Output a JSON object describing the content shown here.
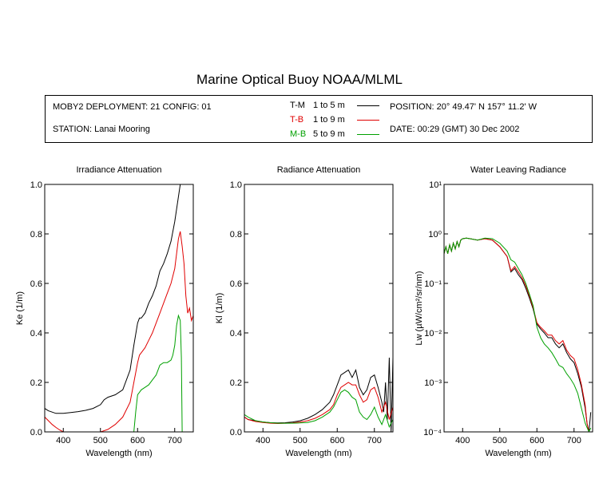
{
  "title": "Marine Optical Buoy NOAA/MLML",
  "info": {
    "deployment": "MOBY2 DEPLOYMENT: 21 CONFIG: 01",
    "station": "STATION: Lanai Mooring",
    "position": "POSITION: 20° 49.47' N   157° 11.2' W",
    "date": "DATE: 00:29 (GMT) 30 Dec 2002",
    "legend": [
      {
        "code": "T-M",
        "range": "1 to 5  m",
        "color": "#000000"
      },
      {
        "code": "T-B",
        "range": "1 to 9  m",
        "color": "#e00000"
      },
      {
        "code": "M-B",
        "range": "5 to 9  m",
        "color": "#00a000"
      }
    ]
  },
  "chart_data": [
    {
      "type": "line",
      "title": "Irradiance Attenuation",
      "xlabel": "Wavelength (nm)",
      "ylabel": "Ke  (1/m)",
      "xlim": [
        350,
        750
      ],
      "ylim": [
        0,
        1
      ],
      "xticks": [
        400,
        500,
        600,
        700
      ],
      "yticks": [
        "0.0",
        "0.2",
        "0.4",
        "0.6",
        "0.8",
        "1.0"
      ],
      "series": [
        {
          "name": "T-M",
          "x": [
            350,
            360,
            380,
            400,
            420,
            440,
            460,
            480,
            500,
            510,
            520,
            540,
            560,
            580,
            590,
            600,
            605,
            610,
            620,
            630,
            640,
            650,
            660,
            670,
            680,
            690,
            700,
            710,
            715
          ],
          "y": [
            0.095,
            0.085,
            0.075,
            0.075,
            0.078,
            0.082,
            0.087,
            0.095,
            0.11,
            0.13,
            0.14,
            0.15,
            0.17,
            0.25,
            0.35,
            0.44,
            0.46,
            0.46,
            0.48,
            0.52,
            0.55,
            0.59,
            0.65,
            0.68,
            0.72,
            0.77,
            0.85,
            0.95,
            1.0
          ]
        },
        {
          "name": "T-B",
          "x": [
            350,
            360,
            370,
            380,
            390,
            400,
            410,
            420,
            440,
            460,
            480,
            500,
            520,
            540,
            560,
            580,
            590,
            600,
            605,
            610,
            620,
            630,
            640,
            650,
            660,
            670,
            680,
            690,
            700,
            705,
            710,
            715,
            720,
            725,
            730,
            735,
            740,
            745,
            750
          ],
          "y": [
            0.06,
            0.045,
            0.03,
            0.018,
            0.008,
            0.0,
            0.0,
            0.0,
            0.0,
            0.0,
            0.0,
            0.0,
            0.01,
            0.03,
            0.06,
            0.12,
            0.2,
            0.28,
            0.31,
            0.32,
            0.34,
            0.37,
            0.4,
            0.44,
            0.48,
            0.52,
            0.56,
            0.6,
            0.66,
            0.72,
            0.78,
            0.81,
            0.75,
            0.68,
            0.55,
            0.48,
            0.5,
            0.45,
            0.47
          ]
        },
        {
          "name": "M-B",
          "x": [
            590,
            595,
            600,
            605,
            610,
            620,
            630,
            640,
            650,
            660,
            670,
            680,
            690,
            695,
            700,
            705,
            710,
            715,
            718,
            720
          ],
          "y": [
            0.0,
            0.08,
            0.15,
            0.16,
            0.17,
            0.18,
            0.19,
            0.21,
            0.23,
            0.27,
            0.28,
            0.28,
            0.29,
            0.31,
            0.35,
            0.43,
            0.47,
            0.45,
            0.3,
            0.0
          ]
        }
      ]
    },
    {
      "type": "line",
      "title": "Radiance Attenuation",
      "xlabel": "Wavelength (nm)",
      "ylabel": "Kl  (1/m)",
      "xlim": [
        350,
        750
      ],
      "ylim": [
        0,
        1
      ],
      "xticks": [
        400,
        500,
        600,
        700
      ],
      "yticks": [
        "0.0",
        "0.2",
        "0.4",
        "0.6",
        "0.8",
        "1.0"
      ],
      "series": [
        {
          "name": "T-M",
          "x": [
            350,
            360,
            380,
            400,
            420,
            440,
            460,
            480,
            500,
            520,
            540,
            560,
            580,
            590,
            600,
            605,
            610,
            620,
            630,
            640,
            650,
            660,
            670,
            680,
            690,
            700,
            710,
            720,
            725,
            730,
            735,
            740,
            745,
            750
          ],
          "y": [
            0.06,
            0.05,
            0.045,
            0.04,
            0.037,
            0.036,
            0.037,
            0.04,
            0.045,
            0.055,
            0.07,
            0.09,
            0.12,
            0.15,
            0.19,
            0.21,
            0.23,
            0.24,
            0.25,
            0.22,
            0.25,
            0.18,
            0.15,
            0.17,
            0.22,
            0.23,
            0.18,
            0.12,
            0.08,
            0.2,
            0.05,
            0.3,
            0.0,
            0.3
          ]
        },
        {
          "name": "T-B",
          "x": [
            350,
            360,
            380,
            400,
            420,
            440,
            460,
            480,
            500,
            520,
            540,
            560,
            580,
            590,
            600,
            610,
            620,
            630,
            640,
            650,
            660,
            670,
            680,
            690,
            700,
            710,
            720,
            730,
            740,
            750
          ],
          "y": [
            0.06,
            0.05,
            0.042,
            0.038,
            0.035,
            0.034,
            0.035,
            0.036,
            0.04,
            0.045,
            0.055,
            0.07,
            0.09,
            0.11,
            0.15,
            0.18,
            0.19,
            0.2,
            0.19,
            0.19,
            0.15,
            0.12,
            0.13,
            0.17,
            0.18,
            0.14,
            0.08,
            0.12,
            0.05,
            0.1
          ]
        },
        {
          "name": "M-B",
          "x": [
            350,
            360,
            380,
            400,
            420,
            440,
            460,
            480,
            500,
            520,
            540,
            560,
            580,
            590,
            600,
            610,
            620,
            630,
            640,
            650,
            660,
            670,
            680,
            690,
            700,
            710,
            720,
            730,
            740,
            750
          ],
          "y": [
            0.07,
            0.06,
            0.045,
            0.04,
            0.037,
            0.035,
            0.035,
            0.035,
            0.036,
            0.038,
            0.045,
            0.06,
            0.08,
            0.1,
            0.13,
            0.16,
            0.17,
            0.16,
            0.14,
            0.13,
            0.08,
            0.06,
            0.05,
            0.07,
            0.1,
            0.06,
            0.03,
            0.07,
            0.02,
            0.05
          ]
        }
      ]
    },
    {
      "type": "line",
      "title": "Water Leaving Radiance",
      "xlabel": "Wavelength (nm)",
      "ylabel": "Lw  (µW/cm²/sr/nm)",
      "xlim": [
        350,
        750
      ],
      "ylim": [
        0.0001,
        10
      ],
      "yscale": "log",
      "xticks": [
        400,
        500,
        600,
        700
      ],
      "yticks": [
        "10⁻⁴",
        "10⁻³",
        "10⁻²",
        "10⁻¹",
        "10⁰",
        "10¹"
      ],
      "series": [
        {
          "name": "T-M",
          "x": [
            350,
            355,
            360,
            365,
            370,
            375,
            380,
            385,
            390,
            395,
            400,
            410,
            420,
            440,
            460,
            480,
            500,
            520,
            530,
            540,
            550,
            560,
            570,
            580,
            590,
            600,
            610,
            620,
            630,
            640,
            650,
            660,
            670,
            680,
            690,
            700,
            710,
            720,
            730,
            735,
            740,
            745
          ],
          "y": [
            0.4,
            0.55,
            0.4,
            0.6,
            0.45,
            0.65,
            0.5,
            0.7,
            0.55,
            0.75,
            0.8,
            0.82,
            0.8,
            0.75,
            0.8,
            0.75,
            0.55,
            0.35,
            0.17,
            0.2,
            0.15,
            0.12,
            0.08,
            0.05,
            0.03,
            0.015,
            0.012,
            0.01,
            0.008,
            0.008,
            0.006,
            0.005,
            0.006,
            0.004,
            0.003,
            0.0025,
            0.0015,
            0.0008,
            0.0003,
            0.00015,
            0.0001,
            0.00025
          ]
        },
        {
          "name": "T-B",
          "x": [
            350,
            355,
            360,
            365,
            370,
            375,
            380,
            385,
            390,
            395,
            400,
            410,
            420,
            440,
            460,
            480,
            500,
            520,
            530,
            540,
            550,
            560,
            570,
            580,
            590,
            600,
            610,
            620,
            630,
            640,
            650,
            660,
            670,
            680,
            690,
            700,
            710,
            720,
            730,
            735,
            740
          ],
          "y": [
            0.4,
            0.55,
            0.4,
            0.6,
            0.45,
            0.65,
            0.5,
            0.7,
            0.55,
            0.75,
            0.8,
            0.82,
            0.8,
            0.75,
            0.8,
            0.75,
            0.55,
            0.35,
            0.18,
            0.22,
            0.17,
            0.13,
            0.09,
            0.055,
            0.032,
            0.016,
            0.013,
            0.011,
            0.009,
            0.009,
            0.007,
            0.006,
            0.007,
            0.0045,
            0.0035,
            0.003,
            0.0018,
            0.0009,
            0.00035,
            0.00015,
            0.0001
          ]
        },
        {
          "name": "M-B",
          "x": [
            350,
            355,
            360,
            365,
            370,
            375,
            380,
            385,
            390,
            395,
            400,
            410,
            420,
            440,
            460,
            480,
            500,
            520,
            530,
            540,
            550,
            560,
            570,
            580,
            590,
            600,
            610,
            620,
            630,
            640,
            650,
            660,
            670,
            680,
            690,
            700,
            710,
            720,
            730,
            740,
            745
          ],
          "y": [
            0.4,
            0.55,
            0.4,
            0.6,
            0.45,
            0.65,
            0.5,
            0.7,
            0.55,
            0.75,
            0.8,
            0.82,
            0.8,
            0.75,
            0.82,
            0.8,
            0.65,
            0.45,
            0.3,
            0.27,
            0.2,
            0.15,
            0.1,
            0.06,
            0.035,
            0.013,
            0.008,
            0.006,
            0.005,
            0.004,
            0.003,
            0.0022,
            0.002,
            0.0015,
            0.0012,
            0.0009,
            0.0006,
            0.0003,
            0.00015,
            0.0001,
            0.00012
          ]
        }
      ]
    }
  ]
}
